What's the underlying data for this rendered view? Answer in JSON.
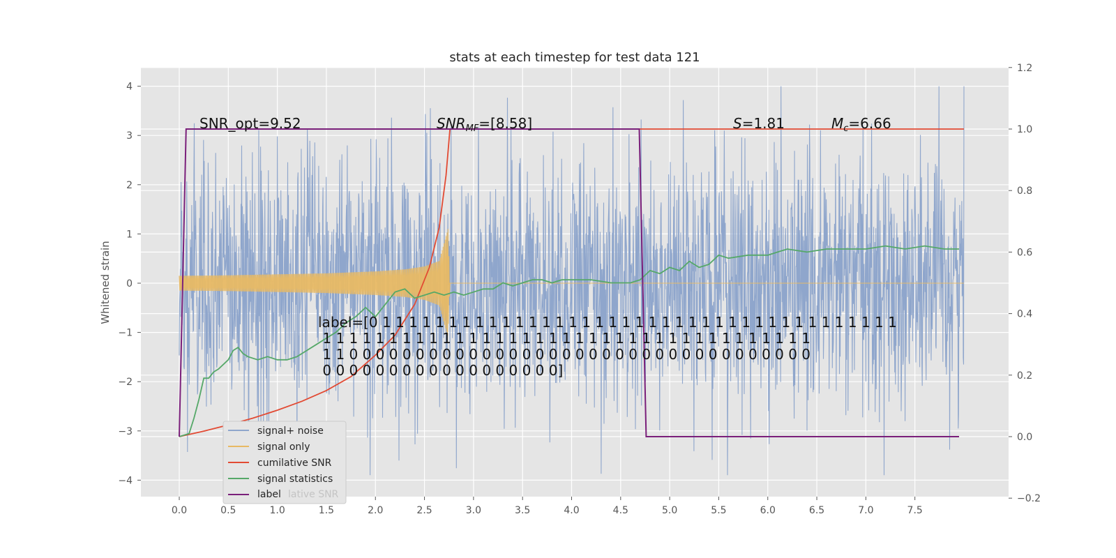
{
  "chart_data": {
    "type": "line",
    "title": "stats at each timestep for test data 121",
    "xlabel": "",
    "ylabel": "Whitened strain",
    "xlim": [
      -0.4,
      8.4
    ],
    "ylim": [
      -4.4,
      4.4
    ],
    "y2lim": [
      -0.2,
      1.2
    ],
    "grid": true,
    "legend_position": "lower-left",
    "x_ticks": [
      "0.0",
      "0.5",
      "1.0",
      "1.5",
      "2.0",
      "2.5",
      "3.0",
      "3.5",
      "4.0",
      "4.5",
      "5.0",
      "5.5",
      "6.0",
      "6.5",
      "7.0",
      "7.5"
    ],
    "y_ticks": [
      "4",
      "3",
      "2",
      "1",
      "0",
      "−1",
      "−2",
      "−3",
      "−4"
    ],
    "y2_ticks": [
      "1.2",
      "1.0",
      "0.8",
      "0.6",
      "0.4",
      "0.2",
      "0.0",
      "−0.2"
    ],
    "annotations": {
      "snr_opt": "SNR_opt=9.52",
      "snr_mf": "SNR",
      "snr_mf_sub": "MF",
      "snr_mf_val": "=[8.58]",
      "s_sym": "S",
      "s_val": "=1.81",
      "mc_sym": "M",
      "mc_sub": "c",
      "mc_val": "=6.66"
    },
    "label_text": [
      "label=[0 1 1 1 1 1 1 1 1 1 1 1 1 1 1 1 1 1 1 1 1 1 1 1 1 1 1 1 1 1 1 1 1 1 1 1 1 1 1 1",
      " 1 1 1 1 1 1 1 1 1 1 1 1 1 1 1 1 1 1 1 1 1 1 1 1 1 1 1 1 1 1 1 1 1 1 1 1 1",
      " 1 1 0 0 0 0 0 0 0 0 0 0 0 0 0 0 0 0 0 0 0 0 0 0 0 0 0 0 0 0 0 0 0 0 0 0 0",
      " 0 0 0 0 0 0 0 0 0 0 0 0 0 0 0 0 0 0]"
    ],
    "series": [
      {
        "name": "signal+ noise",
        "color": "#8fa6cc",
        "axis": "left",
        "description_noise_amplitude": 1.3,
        "x_range": [
          0.0,
          8.0
        ]
      },
      {
        "name": "signal only",
        "color": "#e8b964",
        "axis": "left",
        "envelope_x": [
          0.0,
          0.5,
          1.0,
          1.5,
          2.0,
          2.3,
          2.5,
          2.65,
          2.74,
          2.76,
          8.0
        ],
        "envelope_y": [
          0.15,
          0.16,
          0.18,
          0.2,
          0.24,
          0.28,
          0.34,
          0.45,
          1.1,
          0.0,
          0.0
        ]
      },
      {
        "name": "cumilative SNR",
        "color": "#e24a33",
        "axis": "right",
        "x": [
          0.0,
          0.25,
          0.5,
          0.75,
          1.0,
          1.25,
          1.5,
          1.75,
          2.0,
          2.2,
          2.4,
          2.55,
          2.65,
          2.72,
          2.76,
          8.0
        ],
        "y": [
          0.0,
          0.018,
          0.038,
          0.06,
          0.086,
          0.115,
          0.15,
          0.195,
          0.265,
          0.33,
          0.43,
          0.55,
          0.68,
          0.85,
          1.0,
          1.0
        ]
      },
      {
        "name": "signal statistics",
        "color": "#55a868",
        "axis": "right",
        "x": [
          0.0,
          0.1,
          0.15,
          0.2,
          0.25,
          0.3,
          0.35,
          0.4,
          0.5,
          0.55,
          0.6,
          0.65,
          0.7,
          0.8,
          0.9,
          1.0,
          1.1,
          1.2,
          1.3,
          1.4,
          1.5,
          1.6,
          1.7,
          1.8,
          1.9,
          2.0,
          2.1,
          2.2,
          2.3,
          2.4,
          2.5,
          2.6,
          2.7,
          2.8,
          2.9,
          3.0,
          3.1,
          3.2,
          3.3,
          3.4,
          3.5,
          3.6,
          3.7,
          3.8,
          3.9,
          4.0,
          4.2,
          4.4,
          4.5,
          4.6,
          4.7,
          4.8,
          4.9,
          5.0,
          5.1,
          5.2,
          5.3,
          5.4,
          5.5,
          5.6,
          5.8,
          6.0,
          6.1,
          6.2,
          6.4,
          6.6,
          6.8,
          7.0,
          7.2,
          7.4,
          7.6,
          7.8,
          7.95
        ],
        "y": [
          0.0,
          0.01,
          0.06,
          0.12,
          0.19,
          0.19,
          0.21,
          0.22,
          0.25,
          0.28,
          0.29,
          0.27,
          0.26,
          0.25,
          0.26,
          0.25,
          0.25,
          0.26,
          0.28,
          0.3,
          0.32,
          0.34,
          0.37,
          0.39,
          0.42,
          0.39,
          0.43,
          0.47,
          0.48,
          0.45,
          0.46,
          0.47,
          0.46,
          0.47,
          0.46,
          0.47,
          0.48,
          0.48,
          0.5,
          0.49,
          0.5,
          0.51,
          0.51,
          0.5,
          0.51,
          0.51,
          0.51,
          0.5,
          0.5,
          0.5,
          0.51,
          0.54,
          0.53,
          0.55,
          0.54,
          0.57,
          0.55,
          0.56,
          0.59,
          0.58,
          0.59,
          0.59,
          0.6,
          0.61,
          0.6,
          0.61,
          0.61,
          0.61,
          0.62,
          0.61,
          0.62,
          0.61,
          0.61
        ]
      },
      {
        "name": "label",
        "color": "#7a1f7a",
        "axis": "right",
        "x": [
          0.0,
          0.07,
          4.69,
          4.76,
          7.95
        ],
        "y": [
          0.0,
          1.0,
          1.0,
          0.0,
          0.0
        ]
      }
    ],
    "legend_entries": [
      "signal+ noise",
      "signal only",
      "cumilative SNR",
      "signal statistics",
      "label"
    ],
    "legend_ghost_text": "lative SNR"
  }
}
